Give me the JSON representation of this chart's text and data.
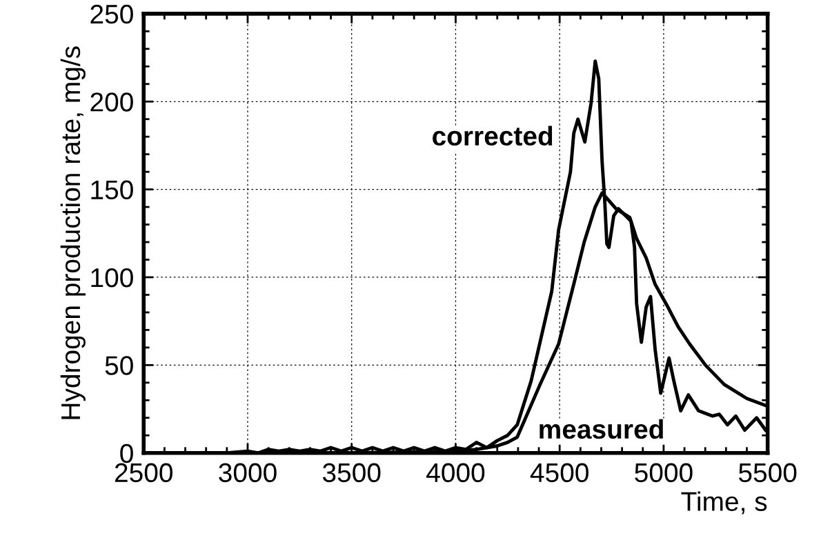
{
  "chart_data": {
    "type": "line",
    "xlabel": "Time, s",
    "ylabel": "Hydrogen production rate, mg/s",
    "xlim": [
      2500,
      5500
    ],
    "ylim": [
      0,
      250
    ],
    "xticks": [
      2500,
      3000,
      3500,
      4000,
      4500,
      5000,
      5500
    ],
    "yticks": [
      0,
      50,
      100,
      150,
      200,
      250
    ],
    "grid": true,
    "line_style": "solid",
    "marker": "none",
    "series": [
      {
        "name": "corrected",
        "color": "#000000",
        "x": [
          2500,
          2800,
          2900,
          3000,
          3050,
          3100,
          3150,
          3200,
          3250,
          3300,
          3350,
          3400,
          3450,
          3500,
          3550,
          3600,
          3650,
          3700,
          3750,
          3800,
          3850,
          3900,
          3950,
          4000,
          4050,
          4100,
          4150,
          4200,
          4250,
          4296,
          4363,
          4462,
          4495,
          4552,
          4568,
          4588,
          4621,
          4651,
          4671,
          4688,
          4704,
          4717,
          4727,
          4737,
          4760,
          4783,
          4817,
          4843,
          4860,
          4870,
          4893,
          4916,
          4937,
          4959,
          4986,
          5026,
          5049,
          5082,
          5119,
          5168,
          5235,
          5268,
          5307,
          5347,
          5390,
          5447,
          5490
        ],
        "values": [
          0,
          0,
          0,
          1,
          0,
          2,
          1,
          2,
          1,
          2,
          1,
          3,
          1,
          3,
          1,
          3,
          1,
          3,
          1,
          3,
          1,
          3,
          1,
          3,
          2,
          6,
          3,
          7,
          10,
          16,
          41,
          92,
          127,
          160,
          182,
          190,
          177,
          199,
          223,
          213,
          166,
          143,
          119,
          117,
          135,
          139,
          135,
          132,
          117,
          85,
          63,
          83,
          89,
          59,
          34,
          54,
          41,
          24,
          33,
          24,
          21,
          22,
          16,
          21,
          13,
          20,
          13
        ]
      },
      {
        "name": "measured",
        "color": "#000000",
        "x": [
          2500,
          3000,
          3500,
          4000,
          4100,
          4200,
          4250,
          4296,
          4406,
          4495,
          4572,
          4618,
          4671,
          4704,
          4771,
          4837,
          4870,
          4916,
          4959,
          5016,
          5069,
          5125,
          5201,
          5291,
          5400,
          5490
        ],
        "values": [
          0,
          0,
          0,
          1,
          2,
          4,
          6,
          9,
          39,
          62,
          98,
          120,
          140,
          148,
          139,
          134,
          122,
          111,
          96,
          84,
          72,
          62,
          50,
          39,
          31,
          27
        ]
      }
    ]
  }
}
